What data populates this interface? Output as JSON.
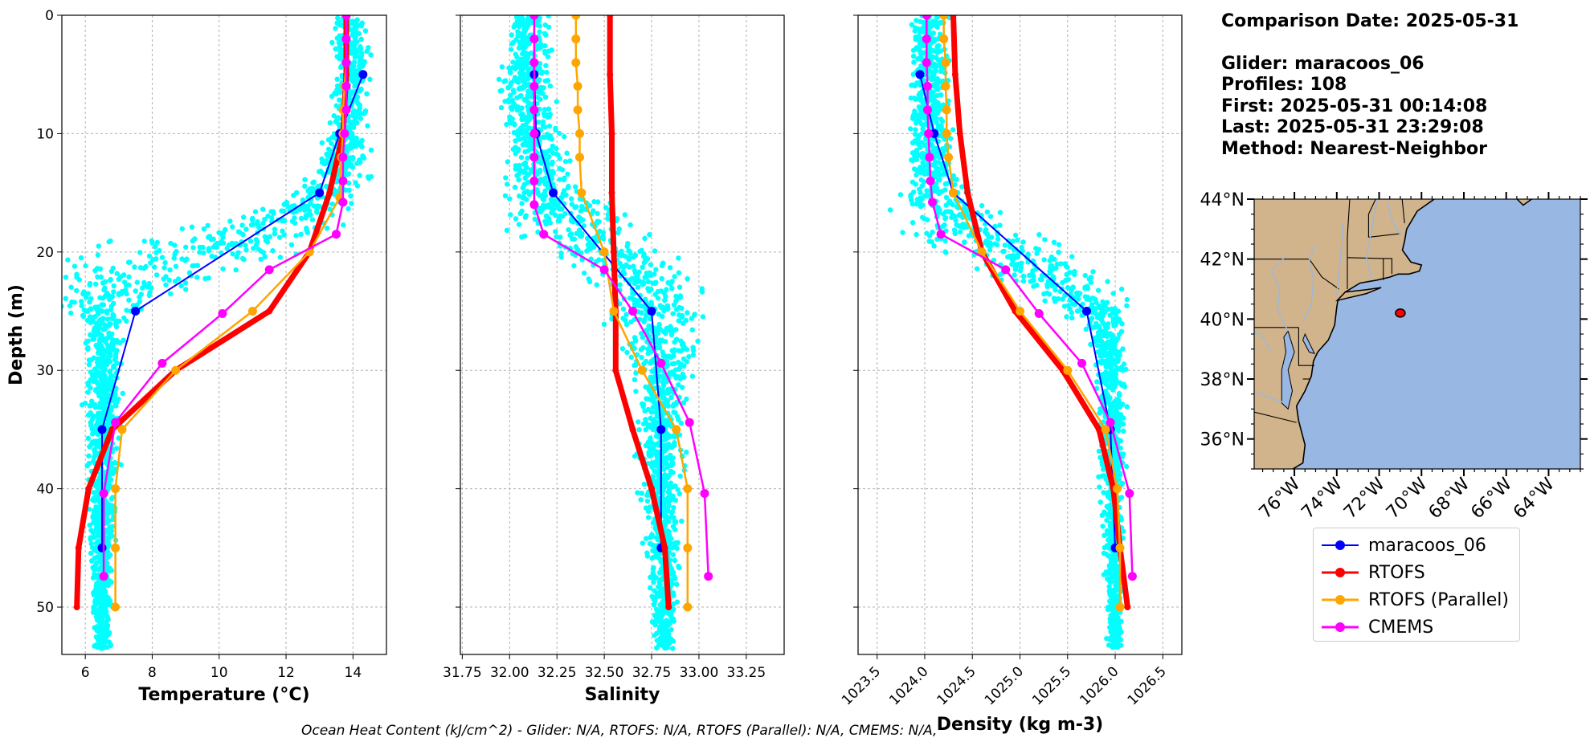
{
  "info": {
    "comparison": "Comparison Date: 2025-05-31",
    "glider": "Glider: maracoos_06",
    "profiles": "Profiles: 108",
    "first": "First: 2025-05-31 00:14:08",
    "last": "Last: 2025-05-31 23:29:08",
    "method": "Method: Nearest-Neighbor"
  },
  "footer": "Ocean Heat Content (kJ/cm^2) - Glider: N/A,  RTOFS: N/A,  RTOFS (Parallel): N/A,  CMEMS: N/A,",
  "legend": [
    {
      "name": "maracoos_06",
      "color": "#0000ff"
    },
    {
      "name": "RTOFS",
      "color": "#ff0000"
    },
    {
      "name": "RTOFS (Parallel)",
      "color": "#ffa500"
    },
    {
      "name": "CMEMS",
      "color": "#ff00ff"
    }
  ],
  "chart_data": [
    {
      "type": "line",
      "panel": "temperature",
      "xlabel": "Temperature (°C)",
      "ylabel": "Depth (m)",
      "xlim": [
        5.3,
        15.0
      ],
      "ylim": [
        54,
        0
      ],
      "y_inverted": true,
      "xticks": [
        6,
        8,
        10,
        12,
        14
      ],
      "yticks": [
        0,
        10,
        20,
        30,
        40,
        50
      ],
      "grid": true,
      "glider_scatter": {
        "color": "#00ffff",
        "profile": [
          [
            0,
            13.9
          ],
          [
            5,
            14.0
          ],
          [
            10,
            13.8
          ],
          [
            14,
            13.5
          ],
          [
            16,
            12.8
          ],
          [
            18,
            11.2
          ],
          [
            20,
            9.0
          ],
          [
            22,
            7.0
          ],
          [
            25,
            6.6
          ],
          [
            30,
            6.55
          ],
          [
            40,
            6.5
          ],
          [
            50,
            6.5
          ],
          [
            54,
            6.5
          ]
        ],
        "spread": [
          [
            0,
            0.4
          ],
          [
            10,
            0.5
          ],
          [
            16,
            0.8
          ],
          [
            19,
            2.5
          ],
          [
            22,
            2.5
          ],
          [
            26,
            0.5
          ],
          [
            54,
            0.2
          ]
        ]
      },
      "series": [
        {
          "name": "maracoos_06",
          "color": "#0000ff",
          "width": 2,
          "marker": 11,
          "points": [
            [
              14.3,
              5
            ],
            [
              13.6,
              10
            ],
            [
              13.0,
              15
            ],
            [
              7.5,
              25
            ],
            [
              6.5,
              35
            ],
            [
              6.5,
              45
            ]
          ]
        },
        {
          "name": "RTOFS",
          "color": "#ff0000",
          "width": 7,
          "marker": 8,
          "points": [
            [
              13.8,
              0
            ],
            [
              13.8,
              5
            ],
            [
              13.7,
              10
            ],
            [
              13.3,
              15
            ],
            [
              12.7,
              20
            ],
            [
              11.5,
              25
            ],
            [
              8.7,
              30
            ],
            [
              6.8,
              35
            ],
            [
              6.1,
              40
            ],
            [
              5.8,
              45
            ],
            [
              5.75,
              50
            ]
          ]
        },
        {
          "name": "RTOFS (Parallel)",
          "color": "#ffa500",
          "width": 2.5,
          "marker": 11,
          "points": [
            [
              13.8,
              0
            ],
            [
              13.8,
              2
            ],
            [
              13.8,
              4
            ],
            [
              13.75,
              6
            ],
            [
              13.7,
              8
            ],
            [
              13.7,
              10
            ],
            [
              13.65,
              12
            ],
            [
              13.6,
              15.4
            ],
            [
              12.7,
              20
            ],
            [
              11.0,
              25
            ],
            [
              8.7,
              30
            ],
            [
              7.1,
              35
            ],
            [
              6.9,
              40
            ],
            [
              6.9,
              45
            ],
            [
              6.9,
              50
            ]
          ]
        },
        {
          "name": "CMEMS",
          "color": "#ff00ff",
          "width": 2.5,
          "marker": 11,
          "points": [
            [
              13.8,
              0
            ],
            [
              13.8,
              2
            ],
            [
              13.8,
              4
            ],
            [
              13.8,
              6
            ],
            [
              13.8,
              8
            ],
            [
              13.75,
              10
            ],
            [
              13.7,
              12
            ],
            [
              13.7,
              14
            ],
            [
              13.7,
              15.8
            ],
            [
              13.5,
              18.5
            ],
            [
              11.5,
              21.5
            ],
            [
              10.1,
              25.2
            ],
            [
              8.3,
              29.4
            ],
            [
              6.9,
              34.4
            ],
            [
              6.55,
              40.4
            ],
            [
              6.55,
              47.4
            ]
          ]
        }
      ]
    },
    {
      "type": "line",
      "panel": "salinity",
      "xlabel": "Salinity",
      "xlim": [
        31.74,
        33.45
      ],
      "ylim": [
        54,
        0
      ],
      "y_inverted": true,
      "xticks": [
        31.75,
        32.0,
        32.25,
        32.5,
        32.75,
        33.0,
        33.25
      ],
      "yticks": [
        0,
        10,
        20,
        30,
        40,
        50
      ],
      "grid": true,
      "glider_scatter": {
        "color": "#00ffff",
        "profile": [
          [
            0,
            32.1
          ],
          [
            10,
            32.1
          ],
          [
            15,
            32.2
          ],
          [
            18,
            32.35
          ],
          [
            20,
            32.55
          ],
          [
            23,
            32.75
          ],
          [
            30,
            32.8
          ],
          [
            40,
            32.8
          ],
          [
            50,
            32.82
          ],
          [
            54,
            32.82
          ]
        ],
        "spread": [
          [
            0,
            0.08
          ],
          [
            14,
            0.15
          ],
          [
            18,
            0.3
          ],
          [
            22,
            0.25
          ],
          [
            30,
            0.12
          ],
          [
            54,
            0.04
          ]
        ]
      },
      "series": [
        {
          "name": "maracoos_06",
          "color": "#0000ff",
          "width": 2,
          "marker": 11,
          "points": [
            [
              32.13,
              5
            ],
            [
              32.14,
              10
            ],
            [
              32.23,
              15
            ],
            [
              32.75,
              25
            ],
            [
              32.8,
              35
            ],
            [
              32.8,
              45
            ]
          ]
        },
        {
          "name": "RTOFS",
          "color": "#ff0000",
          "width": 7,
          "marker": 8,
          "points": [
            [
              32.53,
              0
            ],
            [
              32.53,
              5
            ],
            [
              32.54,
              10
            ],
            [
              32.54,
              15
            ],
            [
              32.55,
              20
            ],
            [
              32.56,
              25
            ],
            [
              32.56,
              30
            ],
            [
              32.65,
              35
            ],
            [
              32.75,
              40
            ],
            [
              32.82,
              45
            ],
            [
              32.84,
              50
            ]
          ]
        },
        {
          "name": "RTOFS (Parallel)",
          "color": "#ffa500",
          "width": 2.5,
          "marker": 11,
          "points": [
            [
              32.35,
              0
            ],
            [
              32.35,
              2
            ],
            [
              32.35,
              4
            ],
            [
              32.36,
              6
            ],
            [
              32.36,
              8
            ],
            [
              32.37,
              10
            ],
            [
              32.37,
              12
            ],
            [
              32.38,
              15
            ],
            [
              32.5,
              20
            ],
            [
              32.55,
              25
            ],
            [
              32.7,
              30
            ],
            [
              32.88,
              35
            ],
            [
              32.94,
              40
            ],
            [
              32.94,
              45
            ],
            [
              32.94,
              50
            ]
          ]
        },
        {
          "name": "CMEMS",
          "color": "#ff00ff",
          "width": 2.5,
          "marker": 11,
          "points": [
            [
              32.13,
              0
            ],
            [
              32.13,
              2
            ],
            [
              32.13,
              4
            ],
            [
              32.13,
              6
            ],
            [
              32.13,
              8
            ],
            [
              32.13,
              10
            ],
            [
              32.13,
              12
            ],
            [
              32.13,
              14
            ],
            [
              32.13,
              16
            ],
            [
              32.18,
              18.5
            ],
            [
              32.5,
              21.5
            ],
            [
              32.65,
              25
            ],
            [
              32.8,
              29.4
            ],
            [
              32.95,
              34.4
            ],
            [
              33.03,
              40.4
            ],
            [
              33.05,
              47.4
            ]
          ]
        }
      ]
    },
    {
      "type": "line",
      "panel": "density",
      "xlabel": "Density (kg m-3)",
      "xlim": [
        1023.3,
        1026.7
      ],
      "ylim": [
        54,
        0
      ],
      "y_inverted": true,
      "xticks": [
        1023.5,
        1024.0,
        1024.5,
        1025.0,
        1025.5,
        1026.0,
        1026.5
      ],
      "yticks": [
        0,
        10,
        20,
        30,
        40,
        50
      ],
      "grid": true,
      "glider_scatter": {
        "color": "#00ffff",
        "profile": [
          [
            0,
            1024.05
          ],
          [
            10,
            1024.05
          ],
          [
            15,
            1024.1
          ],
          [
            18,
            1024.4
          ],
          [
            20,
            1024.8
          ],
          [
            23,
            1025.5
          ],
          [
            26,
            1025.9
          ],
          [
            30,
            1025.95
          ],
          [
            40,
            1025.98
          ],
          [
            54,
            1026.0
          ]
        ],
        "spread": [
          [
            0,
            0.13
          ],
          [
            14,
            0.2
          ],
          [
            19,
            0.6
          ],
          [
            23,
            0.45
          ],
          [
            27,
            0.15
          ],
          [
            54,
            0.05
          ]
        ]
      },
      "series": [
        {
          "name": "maracoos_06",
          "color": "#0000ff",
          "width": 2,
          "marker": 11,
          "points": [
            [
              1023.95,
              5
            ],
            [
              1024.1,
              10
            ],
            [
              1024.3,
              15
            ],
            [
              1025.7,
              25
            ],
            [
              1025.95,
              35
            ],
            [
              1026.0,
              45
            ]
          ]
        },
        {
          "name": "RTOFS",
          "color": "#ff0000",
          "width": 7,
          "marker": 8,
          "points": [
            [
              1024.3,
              0
            ],
            [
              1024.32,
              5
            ],
            [
              1024.37,
              10
            ],
            [
              1024.45,
              15
            ],
            [
              1024.6,
              20
            ],
            [
              1024.95,
              25
            ],
            [
              1025.45,
              30
            ],
            [
              1025.83,
              35
            ],
            [
              1025.98,
              40
            ],
            [
              1026.05,
              45
            ],
            [
              1026.13,
              50
            ]
          ]
        },
        {
          "name": "RTOFS (Parallel)",
          "color": "#ffa500",
          "width": 2.5,
          "marker": 11,
          "points": [
            [
              1024.2,
              0
            ],
            [
              1024.2,
              2
            ],
            [
              1024.22,
              4
            ],
            [
              1024.22,
              6
            ],
            [
              1024.23,
              8
            ],
            [
              1024.23,
              10
            ],
            [
              1024.25,
              12
            ],
            [
              1024.3,
              15
            ],
            [
              1024.6,
              20
            ],
            [
              1025.0,
              25
            ],
            [
              1025.5,
              30
            ],
            [
              1025.9,
              35
            ],
            [
              1026.02,
              40
            ],
            [
              1026.05,
              45
            ],
            [
              1026.05,
              50
            ]
          ]
        },
        {
          "name": "CMEMS",
          "color": "#ff00ff",
          "width": 2.5,
          "marker": 11,
          "points": [
            [
              1024.02,
              0
            ],
            [
              1024.02,
              2
            ],
            [
              1024.02,
              4
            ],
            [
              1024.03,
              6
            ],
            [
              1024.03,
              8
            ],
            [
              1024.04,
              10
            ],
            [
              1024.05,
              12
            ],
            [
              1024.06,
              14
            ],
            [
              1024.08,
              15.8
            ],
            [
              1024.17,
              18.5
            ],
            [
              1024.85,
              21.5
            ],
            [
              1025.2,
              25.2
            ],
            [
              1025.65,
              29.4
            ],
            [
              1025.95,
              34.4
            ],
            [
              1026.15,
              40.4
            ],
            [
              1026.18,
              47.4
            ]
          ]
        }
      ]
    },
    {
      "type": "map",
      "panel": "location",
      "lon_range": [
        -77.9,
        -62.5
      ],
      "lat_range": [
        35.0,
        44.0
      ],
      "xticks": [
        -76,
        -74,
        -72,
        -70,
        -68,
        -66,
        -64
      ],
      "xtick_labels": [
        "76°W",
        "74°W",
        "72°W",
        "70°W",
        "68°W",
        "66°W",
        "64°W"
      ],
      "yticks": [
        36,
        38,
        40,
        42,
        44
      ],
      "ytick_labels": [
        "36°N",
        "38°N",
        "40°N",
        "42°N",
        "44°N"
      ],
      "ocean_color": "#98b7e2",
      "land_color": "#d2b48c",
      "glider_position": {
        "lon": -71.0,
        "lat": 40.2,
        "color": "#ff0000"
      }
    }
  ]
}
